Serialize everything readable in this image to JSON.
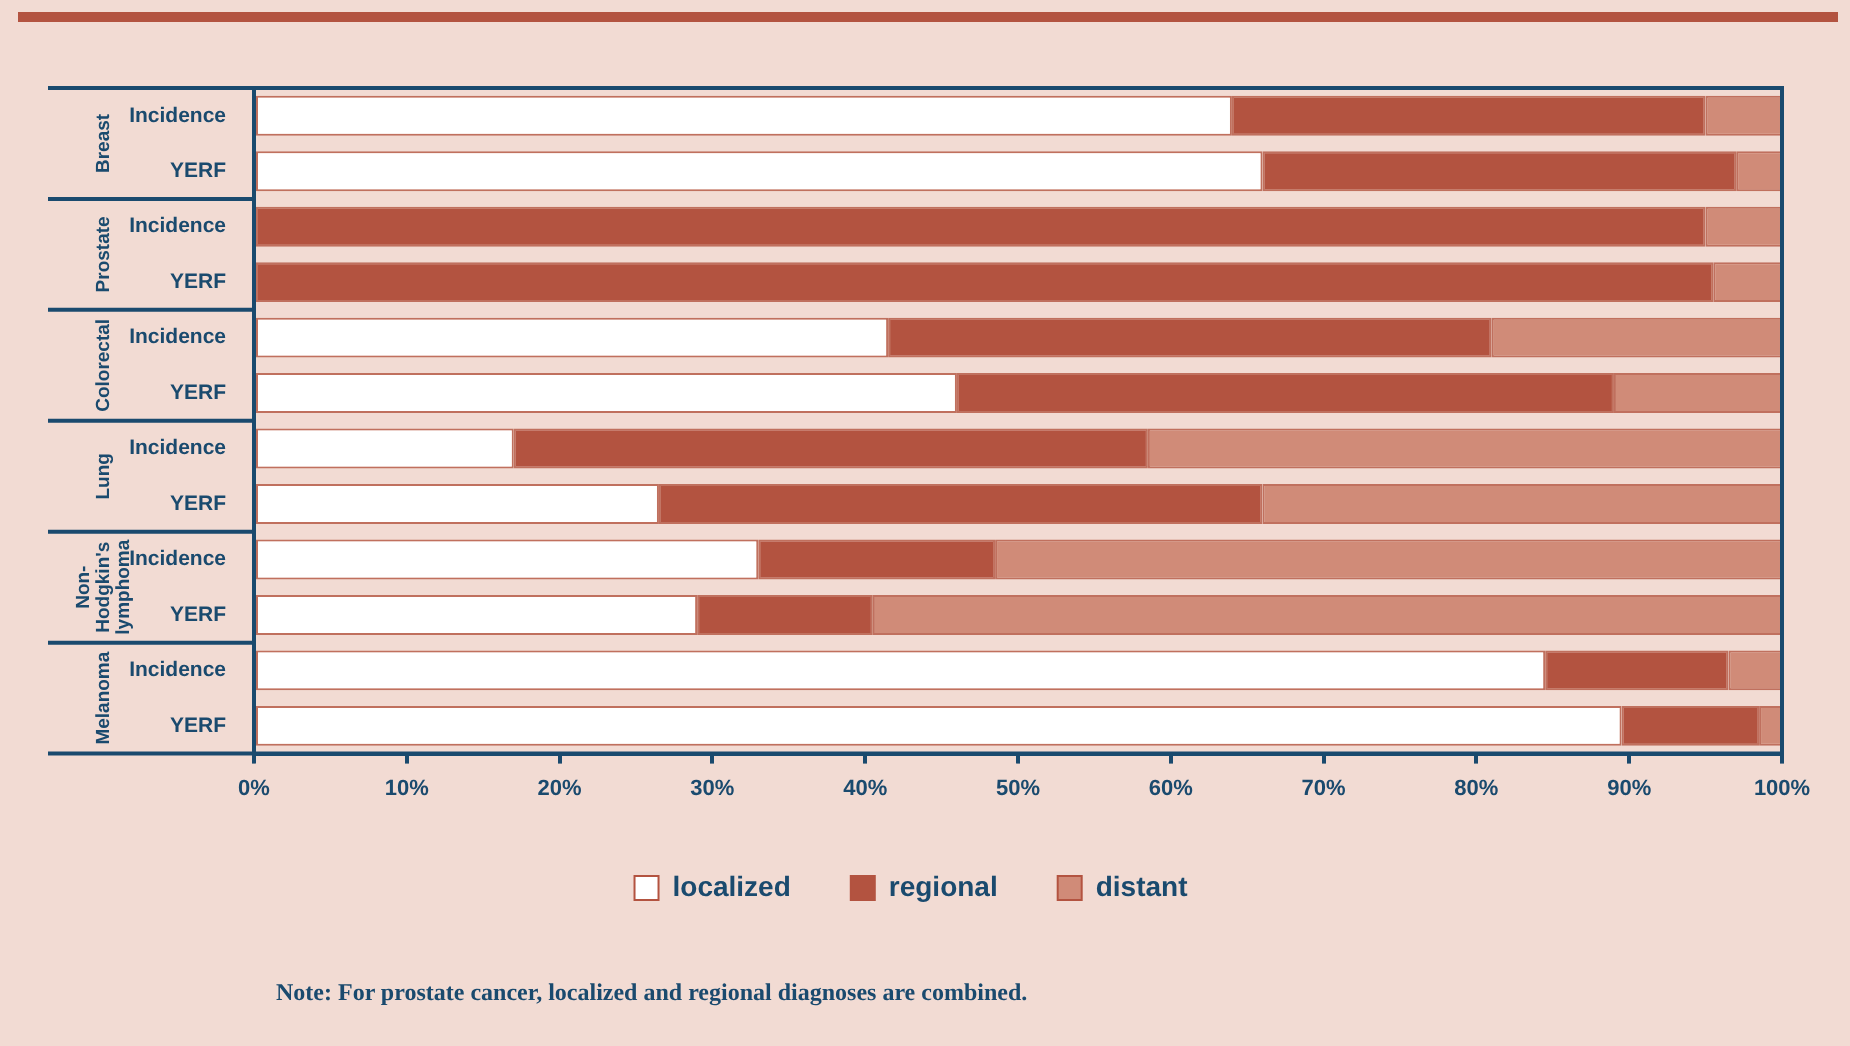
{
  "chart_data": {
    "type": "bar",
    "orientation": "horizontal",
    "stacked": true,
    "categories": [
      "Incidence",
      "YERF",
      "Incidence",
      "YERF",
      "Incidence",
      "YERF",
      "Incidence",
      "YERF",
      "Incidence",
      "YERF",
      "Incidence",
      "YERF"
    ],
    "series": [
      {
        "name": "localized",
        "color": "#ffffff",
        "values": [
          64,
          66,
          0,
          0,
          41.5,
          46,
          17,
          26.5,
          33,
          29,
          84.5,
          89.5
        ]
      },
      {
        "name": "regional",
        "color": "#b35340",
        "values": [
          31,
          31,
          95,
          95.5,
          39.5,
          43,
          41.5,
          39.5,
          15.5,
          11.5,
          12,
          9
        ]
      },
      {
        "name": "distant",
        "color": "#d08b78",
        "values": [
          5,
          3,
          5,
          4.5,
          19,
          11,
          41.5,
          34,
          51.5,
          59.5,
          3.5,
          1.5
        ]
      }
    ],
    "xlim": [
      0,
      100
    ],
    "xticks": [
      {
        "value": 0,
        "label": "0%"
      },
      {
        "value": 10,
        "label": "10%"
      },
      {
        "value": 20,
        "label": "20%"
      },
      {
        "value": 30,
        "label": "30%"
      },
      {
        "value": 40,
        "label": "40%"
      },
      {
        "value": 50,
        "label": "50%"
      },
      {
        "value": 60,
        "label": "60%"
      },
      {
        "value": 70,
        "label": "70%"
      },
      {
        "value": 80,
        "label": "80%"
      },
      {
        "value": 90,
        "label": "90%"
      },
      {
        "value": 100,
        "label": "100%"
      }
    ],
    "grid": false,
    "legend": "bottom",
    "annotations": [
      "Breast",
      "Prostate",
      "Colorectal",
      "Lung",
      "Non-Hodgkin's lymphoma",
      "Melanoma",
      "Note: For prostate cancer, localized and regional diagnoses are combined."
    ]
  }
}
